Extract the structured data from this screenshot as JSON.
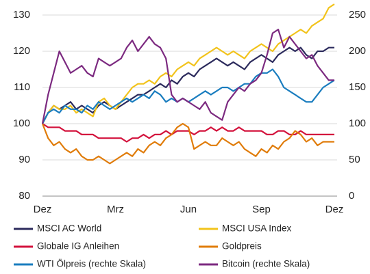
{
  "chart_data": {
    "type": "line",
    "categories": [
      "Dez",
      null,
      null,
      null,
      null,
      null,
      null,
      null,
      null,
      null,
      null,
      null,
      null,
      "Mrz",
      null,
      null,
      null,
      null,
      null,
      null,
      null,
      null,
      null,
      null,
      null,
      null,
      "Jun",
      null,
      null,
      null,
      null,
      null,
      null,
      null,
      null,
      null,
      null,
      null,
      null,
      "Sep",
      null,
      null,
      null,
      null,
      null,
      null,
      null,
      null,
      null,
      null,
      null,
      null,
      "Dez"
    ],
    "ylim": [
      80,
      130
    ],
    "yticks": [
      80,
      90,
      100,
      110,
      120,
      130
    ],
    "y2lim": [
      0,
      250
    ],
    "y2ticks": [
      0,
      50,
      100,
      150,
      200,
      250
    ],
    "grid": true,
    "series": [
      {
        "name": "MSCI AC World",
        "color": "#2b2a5c",
        "values": [
          100,
          103,
          105,
          104,
          105,
          106,
          104,
          105,
          104,
          103,
          105,
          106,
          105,
          104,
          105,
          106,
          107,
          108,
          108,
          109,
          110,
          111,
          110,
          112,
          111,
          113,
          114,
          113,
          115,
          116,
          117,
          118,
          117,
          116,
          117,
          116,
          115,
          117,
          118,
          119,
          118,
          117,
          119,
          120,
          121,
          120,
          121,
          119,
          118,
          120,
          120,
          121,
          121
        ]
      },
      {
        "name": "MSCI USA Index",
        "color": "#f2c31b",
        "values": [
          100,
          103,
          105,
          104,
          104,
          105,
          103,
          104,
          103,
          102,
          106,
          107,
          105,
          104,
          106,
          108,
          110,
          111,
          111,
          112,
          111,
          113,
          114,
          113,
          115,
          116,
          117,
          116,
          118,
          119,
          120,
          121,
          120,
          119,
          120,
          119,
          118,
          120,
          121,
          122,
          121,
          120,
          122,
          123,
          124,
          125,
          126,
          125,
          127,
          128,
          129,
          132,
          133
        ]
      },
      {
        "name": "Globale IG Anleihen",
        "color": "#d3123c",
        "values": [
          100,
          99,
          99,
          99,
          98,
          98,
          98,
          97,
          97,
          97,
          96,
          96,
          96,
          96,
          96,
          95,
          96,
          96,
          97,
          96,
          97,
          97,
          98,
          97,
          98,
          98,
          98,
          97,
          98,
          98,
          99,
          98,
          99,
          98,
          98,
          99,
          98,
          98,
          98,
          98,
          97,
          97,
          98,
          98,
          97,
          97,
          98,
          97,
          97,
          97,
          97,
          97,
          97
        ]
      },
      {
        "name": "Goldpreis",
        "color": "#e07c0a",
        "values": [
          100,
          96,
          94,
          95,
          93,
          92,
          93,
          91,
          90,
          90,
          91,
          90,
          89,
          90,
          91,
          92,
          91,
          93,
          92,
          94,
          95,
          94,
          96,
          97,
          99,
          100,
          99,
          93,
          94,
          95,
          94,
          94,
          96,
          95,
          94,
          95,
          93,
          92,
          91,
          93,
          92,
          94,
          93,
          95,
          96,
          98,
          97,
          95,
          96,
          94,
          95,
          95,
          95
        ]
      },
      {
        "name": "WTI Ölpreis (rechte Skala)",
        "color": "#1a7dbf",
        "axis": "y2",
        "values": [
          100,
          115,
          120,
          115,
          125,
          120,
          120,
          115,
          125,
          120,
          130,
          125,
          120,
          125,
          130,
          135,
          130,
          135,
          140,
          135,
          145,
          140,
          130,
          135,
          130,
          135,
          130,
          135,
          140,
          145,
          140,
          145,
          150,
          150,
          145,
          150,
          155,
          155,
          165,
          170,
          170,
          175,
          165,
          150,
          145,
          140,
          135,
          130,
          130,
          140,
          150,
          155,
          160
        ]
      },
      {
        "name": "Bitcoin (rechte Skala)",
        "color": "#7c2a80",
        "axis": "y2",
        "values": [
          100,
          140,
          170,
          200,
          185,
          170,
          175,
          180,
          170,
          165,
          190,
          185,
          180,
          185,
          190,
          205,
          215,
          200,
          210,
          220,
          210,
          205,
          190,
          140,
          130,
          135,
          130,
          125,
          120,
          130,
          115,
          110,
          105,
          130,
          140,
          150,
          145,
          155,
          160,
          170,
          195,
          225,
          230,
          205,
          220,
          210,
          200,
          190,
          195,
          180,
          170,
          160,
          160
        ]
      }
    ]
  }
}
